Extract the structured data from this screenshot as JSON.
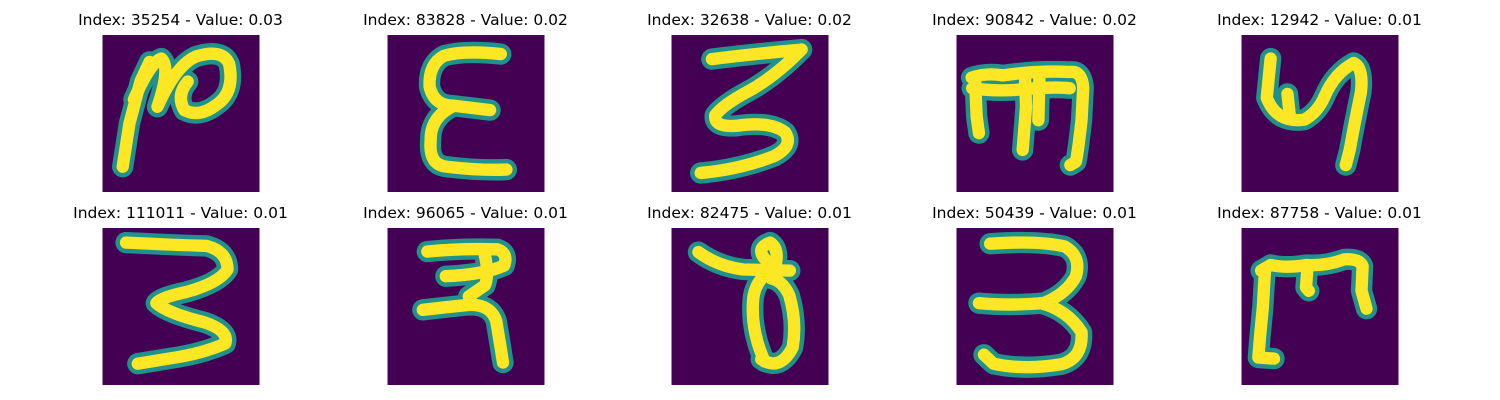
{
  "colors": {
    "background": "#440154",
    "edge": "#21918c",
    "stroke": "#fde725"
  },
  "grid": {
    "rows": [
      [
        {
          "title": "Index: 35254 - Value: 0.03",
          "glyph": "n-hook"
        },
        {
          "title": "Index: 83828 - Value: 0.02",
          "glyph": "epsilon"
        },
        {
          "title": "Index: 32638 - Value: 0.02",
          "glyph": "three-flat-top"
        },
        {
          "title": "Index: 90842 - Value: 0.02",
          "glyph": "m-comb"
        },
        {
          "title": "Index: 12942 - Value: 0.01",
          "glyph": "bold-n"
        }
      ],
      [
        {
          "title": "Index: 111011 - Value: 0.01",
          "glyph": "three-angular"
        },
        {
          "title": "Index: 96065 - Value: 0.01",
          "glyph": "ra-shape"
        },
        {
          "title": "Index: 82475 - Value: 0.01",
          "glyph": "loop-theta"
        },
        {
          "title": "Index: 50439 - Value: 0.01",
          "glyph": "three-round"
        },
        {
          "title": "Index: 87758 - Value: 0.01",
          "glyph": "m-bracket"
        }
      ]
    ]
  }
}
